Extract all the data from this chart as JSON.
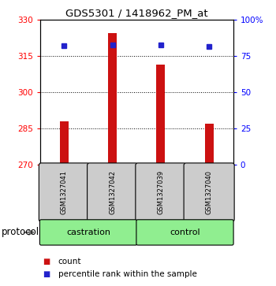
{
  "title": "GDS5301 / 1418962_PM_at",
  "samples": [
    "GSM1327041",
    "GSM1327042",
    "GSM1327039",
    "GSM1327040"
  ],
  "red_values": [
    288.0,
    324.5,
    311.5,
    287.0
  ],
  "blue_values": [
    82.0,
    82.5,
    82.5,
    81.5
  ],
  "baseline": 270,
  "ylim_left": [
    270,
    330
  ],
  "ylim_right": [
    0,
    100
  ],
  "yticks_left": [
    270,
    285,
    300,
    315,
    330
  ],
  "yticks_right": [
    0,
    25,
    50,
    75,
    100
  ],
  "ytick_labels_right": [
    "0",
    "25",
    "50",
    "75",
    "100%"
  ],
  "bar_color": "#cc1111",
  "dot_color": "#2222cc",
  "sample_box_color": "#cccccc",
  "group_box_color": "#90EE90",
  "bar_width": 0.18,
  "protocol_label": "protocol",
  "legend_count_label": "count",
  "legend_pct_label": "percentile rank within the sample",
  "castration_label": "castration",
  "control_label": "control"
}
